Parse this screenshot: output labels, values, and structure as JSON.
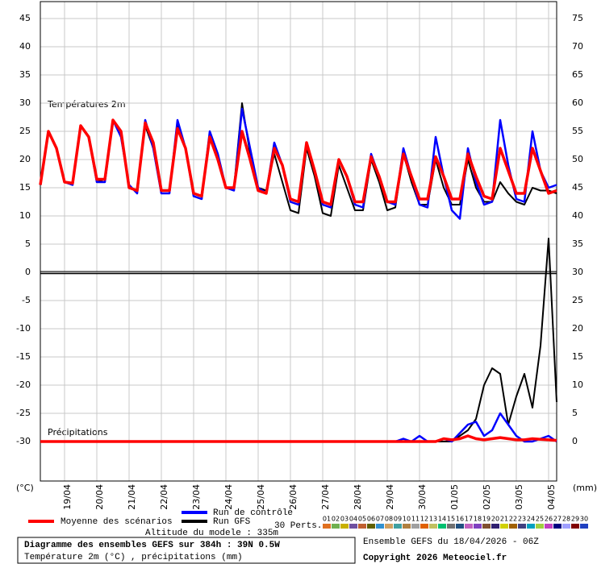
{
  "chart_data": {
    "type": "line",
    "temperature_label": "Températures 2m",
    "precip_label": "Précipitations",
    "y_unit": "(°C)",
    "y2_unit": "(mm)",
    "xlim": [
      0,
      384
    ],
    "xticks": [
      {
        "value": 18,
        "label": "19/04"
      },
      {
        "value": 42,
        "label": "20/04"
      },
      {
        "value": 66,
        "label": "21/04"
      },
      {
        "value": 90,
        "label": "22/04"
      },
      {
        "value": 114,
        "label": "23/04"
      },
      {
        "value": 138,
        "label": "24/04"
      },
      {
        "value": 162,
        "label": "25/04"
      },
      {
        "value": 186,
        "label": "26/04"
      },
      {
        "value": 210,
        "label": "27/04"
      },
      {
        "value": 234,
        "label": "28/04"
      },
      {
        "value": 258,
        "label": "29/04"
      },
      {
        "value": 282,
        "label": "30/04"
      },
      {
        "value": 306,
        "label": "01/05"
      },
      {
        "value": 330,
        "label": "02/05"
      },
      {
        "value": 354,
        "label": "03/05"
      },
      {
        "value": 378,
        "label": "04/05"
      }
    ],
    "ylim": [
      -37,
      48
    ],
    "yticks": [
      -30,
      -25,
      -20,
      -15,
      -10,
      -5,
      0,
      5,
      10,
      15,
      20,
      25,
      30,
      35,
      40,
      45
    ],
    "y2lim": [
      -7,
      78
    ],
    "y2ticks": [
      0,
      5,
      10,
      15,
      20,
      25,
      30,
      35,
      40,
      45,
      50,
      55,
      60,
      65,
      70,
      75
    ],
    "grid": true,
    "x": [
      0,
      6,
      12,
      18,
      24,
      30,
      36,
      42,
      48,
      54,
      60,
      66,
      72,
      78,
      84,
      90,
      96,
      102,
      108,
      114,
      120,
      126,
      132,
      138,
      144,
      150,
      156,
      162,
      168,
      174,
      180,
      186,
      192,
      198,
      204,
      210,
      216,
      222,
      228,
      234,
      240,
      246,
      252,
      258,
      264,
      270,
      276,
      282,
      288,
      294,
      300,
      306,
      312,
      318,
      324,
      330,
      336,
      342,
      348,
      354,
      360,
      366,
      372,
      378,
      384
    ],
    "series": [
      {
        "name": "Moyenne des scénarios",
        "color": "#ff0000",
        "values": [
          15.5,
          25,
          22,
          16,
          15.8,
          26,
          24,
          16.5,
          16.5,
          27,
          25,
          15,
          14.5,
          26.5,
          23,
          14.5,
          14.5,
          25.5,
          22,
          14,
          13.5,
          24,
          20,
          15,
          15,
          25,
          20,
          14.5,
          14,
          22,
          19,
          13,
          12.5,
          23,
          18,
          12.5,
          12,
          20,
          17,
          12.5,
          12.5,
          20.5,
          17,
          12.5,
          12.5,
          21,
          17,
          13,
          13,
          20.5,
          17,
          13,
          13,
          21,
          17,
          13.5,
          13,
          22,
          18,
          14,
          14,
          22,
          18,
          14,
          14.5
        ],
        "y2_values": [
          0,
          0,
          0,
          0,
          0,
          0,
          0,
          0,
          0,
          0,
          0,
          0,
          0,
          0,
          0,
          0,
          0,
          0,
          0,
          0,
          0,
          0,
          0,
          0,
          0,
          0,
          0,
          0,
          0,
          0,
          0,
          0,
          0,
          0,
          0,
          0,
          0,
          0,
          0,
          0,
          0,
          0,
          0,
          0,
          0,
          0,
          0,
          0,
          0,
          0,
          0.5,
          0.3,
          0.5,
          1,
          0.5,
          0.3,
          0.5,
          0.7,
          0.5,
          0.3,
          0.3,
          0.5,
          0.4,
          0.3,
          0.2
        ]
      },
      {
        "name": "Run de contrôle",
        "color": "#0000ff",
        "values": [
          15.5,
          25,
          22,
          16,
          15.5,
          26,
          24,
          16,
          16,
          27,
          24,
          15.5,
          14,
          27,
          22,
          14,
          14,
          27,
          22,
          13.5,
          13,
          25,
          21,
          15,
          14.5,
          29,
          22,
          15,
          14,
          23,
          19,
          12.5,
          12,
          23,
          18,
          12,
          11.5,
          20,
          17,
          12,
          11.5,
          21,
          17,
          12.5,
          12,
          22,
          17,
          12,
          11.5,
          24,
          17,
          11,
          9.5,
          22,
          16,
          12,
          12.5,
          27,
          19,
          13,
          12.5,
          25,
          18,
          15,
          15.5
        ],
        "y2_values": [
          0,
          0,
          0,
          0,
          0,
          0,
          0,
          0,
          0,
          0,
          0,
          0,
          0,
          0,
          0,
          0,
          0,
          0,
          0,
          0,
          0,
          0,
          0,
          0,
          0,
          0,
          0,
          0,
          0,
          0,
          0,
          0,
          0,
          0,
          0,
          0,
          0,
          0,
          0,
          0,
          0,
          0,
          0,
          0,
          0,
          0.5,
          0,
          1,
          0,
          0,
          0.5,
          0,
          1.5,
          3,
          3.5,
          1,
          2,
          5,
          3,
          1,
          0,
          0,
          0.5,
          1,
          0
        ]
      },
      {
        "name": "Run GFS",
        "color": "#000000",
        "values": [
          15.5,
          25,
          22,
          16,
          15.5,
          26,
          24,
          16,
          16.5,
          27,
          25,
          15,
          14.5,
          26,
          22,
          14,
          14,
          26,
          22,
          13.5,
          13,
          24,
          20,
          15,
          15,
          30,
          21,
          15,
          14.5,
          21,
          16,
          11,
          10.5,
          22,
          17,
          10.5,
          10,
          19,
          15,
          11,
          11,
          20,
          16,
          11,
          11.5,
          21,
          16,
          12,
          12,
          20,
          15,
          12,
          12,
          20,
          15,
          12.5,
          12.5,
          16,
          14,
          12.5,
          12,
          15,
          14.5,
          14.5,
          14
        ],
        "y2_values": [
          0,
          0,
          0,
          0,
          0,
          0,
          0,
          0,
          0,
          0,
          0,
          0,
          0,
          0,
          0,
          0,
          0,
          0,
          0,
          0,
          0,
          0,
          0,
          0,
          0,
          0,
          0,
          0,
          0,
          0,
          0,
          0,
          0,
          0,
          0,
          0,
          0,
          0,
          0,
          0,
          0,
          0,
          0,
          0,
          0,
          0,
          0,
          0,
          0,
          0,
          0,
          0,
          1,
          2,
          4,
          10,
          13,
          12,
          3,
          8,
          12,
          6,
          17,
          36,
          7
        ]
      }
    ],
    "perturbations": {
      "label": "30 Perts.",
      "members": [
        {
          "label": "01",
          "color": "#e07020"
        },
        {
          "label": "02",
          "color": "#70b050"
        },
        {
          "label": "03",
          "color": "#c8b000"
        },
        {
          "label": "04",
          "color": "#7050a0"
        },
        {
          "label": "05",
          "color": "#c06030"
        },
        {
          "label": "06",
          "color": "#606000"
        },
        {
          "label": "07",
          "color": "#3090d0"
        },
        {
          "label": "08",
          "color": "#d0a060"
        },
        {
          "label": "09",
          "color": "#40a0a0"
        },
        {
          "label": "10",
          "color": "#b08040"
        },
        {
          "label": "11",
          "color": "#a0a0a0"
        },
        {
          "label": "12",
          "color": "#e06000"
        },
        {
          "label": "13",
          "color": "#c0c060"
        },
        {
          "label": "14",
          "color": "#00c070"
        },
        {
          "label": "15",
          "color": "#707070"
        },
        {
          "label": "16",
          "color": "#205080"
        },
        {
          "label": "17",
          "color": "#c060c0"
        },
        {
          "label": "18",
          "color": "#8040c0"
        },
        {
          "label": "19",
          "color": "#805030"
        },
        {
          "label": "20",
          "color": "#302070"
        },
        {
          "label": "21",
          "color": "#d0d000"
        },
        {
          "label": "22",
          "color": "#a06000"
        },
        {
          "label": "23",
          "color": "#404080"
        },
        {
          "label": "24",
          "color": "#00a0c0"
        },
        {
          "label": "25",
          "color": "#a0d040"
        },
        {
          "label": "26",
          "color": "#c040c0"
        },
        {
          "label": "27",
          "color": "#000080"
        },
        {
          "label": "28",
          "color": "#a0a0ff"
        },
        {
          "label": "29",
          "color": "#800000"
        },
        {
          "label": "30",
          "color": "#2040c0"
        }
      ]
    },
    "altitude": "Altitude du modele : 335m"
  },
  "footer": {
    "title": "Diagramme des ensembles GEFS sur 384h : 39N 0.5W",
    "subtitle": "Température 2m (°C) , précipitations (mm)",
    "run": "Ensemble GEFS du 18/04/2026 - 06Z",
    "copyright": "Copyright 2026 Meteociel.fr"
  }
}
